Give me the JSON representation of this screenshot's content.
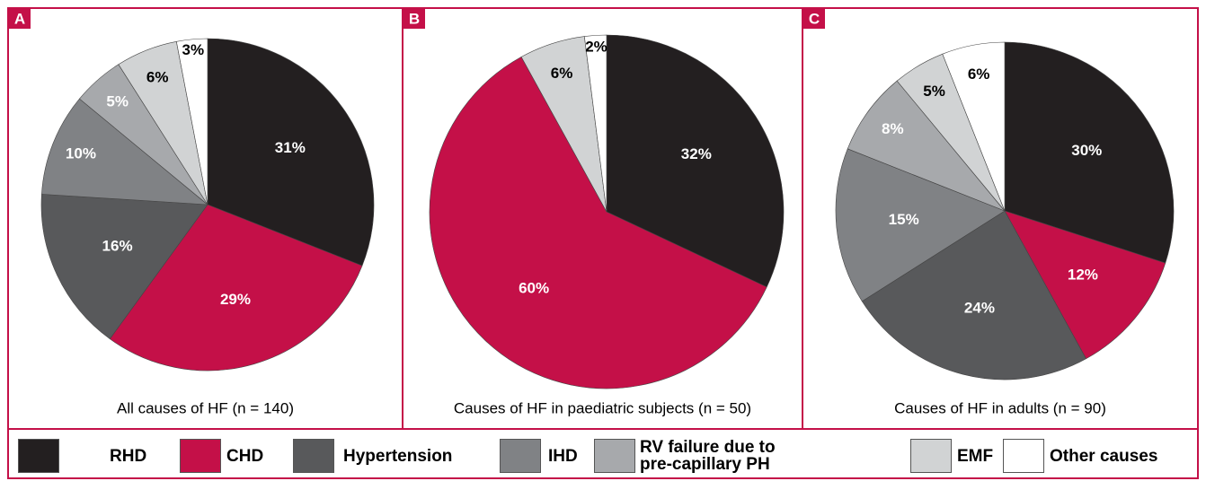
{
  "legend": [
    {
      "name": "RHD",
      "color": "#231f20",
      "text_color": "#ffffff"
    },
    {
      "name": "CHD",
      "color": "#c41048",
      "text_color": "#ffffff"
    },
    {
      "name": "Hypertension",
      "color": "#58595b",
      "text_color": "#ffffff"
    },
    {
      "name": "IHD",
      "color": "#808285",
      "text_color": "#ffffff"
    },
    {
      "name": "RV failure due to pre-capillary PH",
      "color": "#a7a9ac",
      "text_color": "#ffffff"
    },
    {
      "name": "EMF",
      "color": "#d1d3d4",
      "text_color": "#000000"
    },
    {
      "name": "Other causes",
      "color": "#ffffff",
      "text_color": "#000000"
    }
  ],
  "chart_data": [
    {
      "type": "pie",
      "panel": "A",
      "title": "All causes of HF (n = 140)",
      "categories": [
        "RHD",
        "CHD",
        "Hypertension",
        "IHD",
        "RV failure due to pre-capillary PH",
        "EMF",
        "Other causes"
      ],
      "values": [
        31,
        29,
        16,
        10,
        5,
        6,
        3
      ],
      "value_labels": [
        "31%",
        "29%",
        "16%",
        "10%",
        "5%",
        "6%",
        "3%"
      ]
    },
    {
      "type": "pie",
      "panel": "B",
      "title": "Causes of HF in paediatric subjects (n = 50)",
      "categories": [
        "RHD",
        "CHD",
        "EMF",
        "Other causes"
      ],
      "values": [
        32,
        60,
        6,
        2
      ],
      "value_labels": [
        "32%",
        "60%",
        "6%",
        "2%"
      ]
    },
    {
      "type": "pie",
      "panel": "C",
      "title": "Causes of HF in adults (n = 90)",
      "categories": [
        "RHD",
        "CHD",
        "Hypertension",
        "IHD",
        "RV failure due to pre-capillary PH",
        "EMF",
        "Other causes"
      ],
      "values": [
        30,
        12,
        24,
        15,
        8,
        5,
        6
      ],
      "value_labels": [
        "30%",
        "12%",
        "24%",
        "15%",
        "8%",
        "5%",
        "6%"
      ]
    }
  ]
}
